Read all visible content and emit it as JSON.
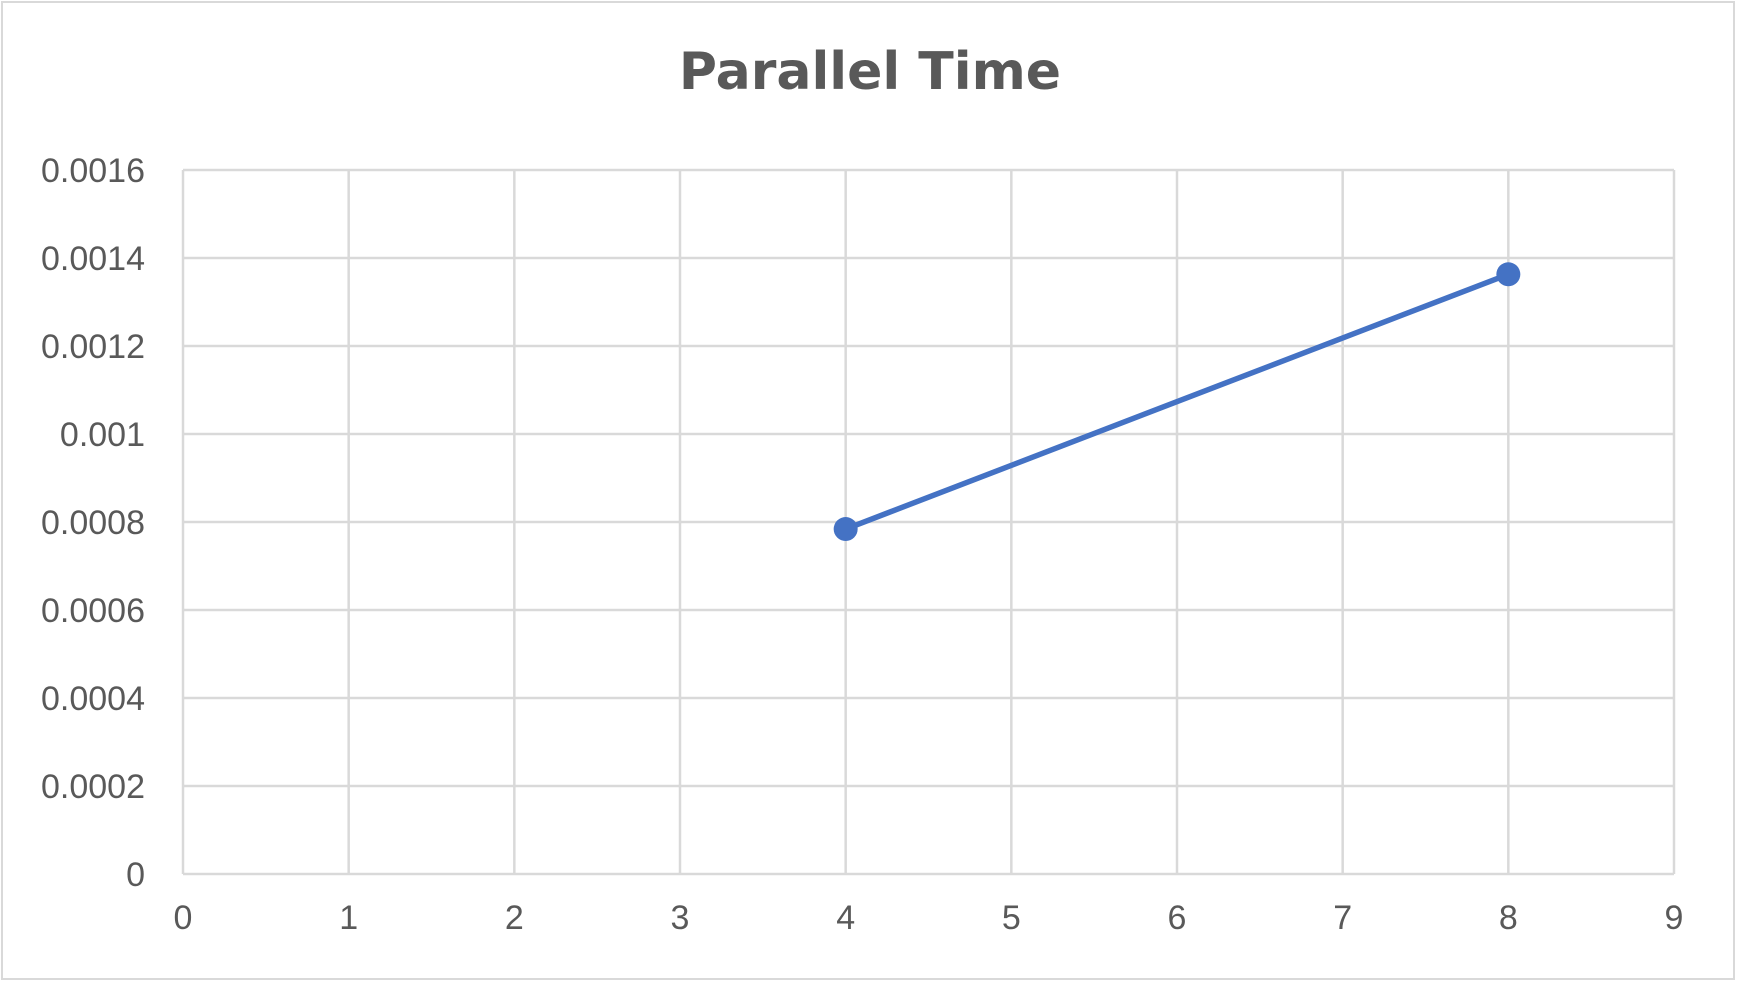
{
  "chart_data": {
    "type": "scatter",
    "title": "Parallel Time",
    "xlabel": "",
    "ylabel": "",
    "xlim": [
      0,
      9
    ],
    "ylim": [
      0,
      0.0016
    ],
    "x_ticks": [
      "0",
      "1",
      "2",
      "3",
      "4",
      "5",
      "6",
      "7",
      "8",
      "9"
    ],
    "y_ticks": [
      "0",
      "0.0002",
      "0.0004",
      "0.0006",
      "0.0008",
      "0.001",
      "0.0012",
      "0.0014",
      "0.0016"
    ],
    "grid": true,
    "legend": "none",
    "lines_connect_points": true,
    "series": [
      {
        "color": "#4472c4",
        "points": [
          {
            "x": 4,
            "y": 0.000784
          },
          {
            "x": 8,
            "y": 0.001363
          }
        ]
      }
    ]
  }
}
